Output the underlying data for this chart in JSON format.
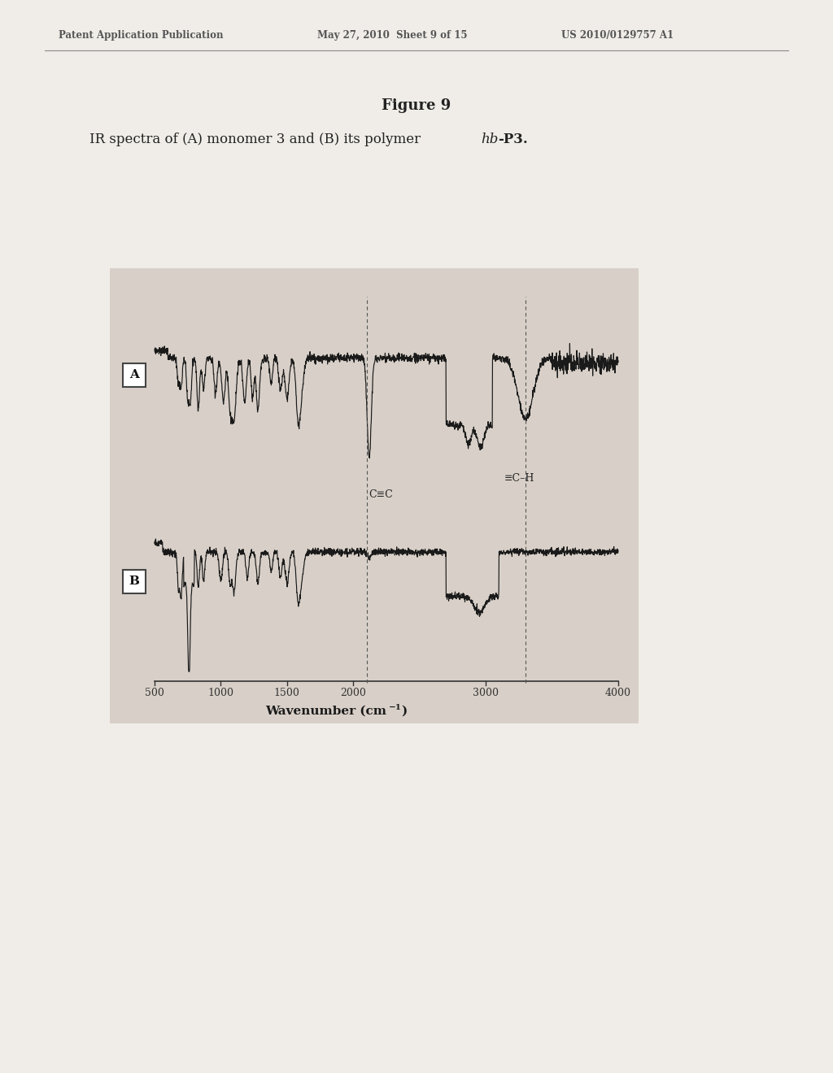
{
  "figure_title": "Figure 9",
  "subtitle_normal": "IR spectra of (A) monomer 3 and (B) its polymer ",
  "subtitle_italic": "hb",
  "subtitle_end": "-P3.",
  "header_left": "Patent Application Publication",
  "header_mid": "May 27, 2010  Sheet 9 of 15",
  "header_right": "US 2010/0129757 A1",
  "xlabel": "Wavenumber (cm⁻¹)",
  "xmin": 4000,
  "xmax": 500,
  "background_color": "#d8d0c8",
  "page_color": "#f0ede8",
  "label_A": "A",
  "label_B": "B",
  "annotation_cch": "≡C–H",
  "annotation_cc": "C≡C",
  "dashed_line_1": 3300,
  "dashed_line_2": 2100
}
